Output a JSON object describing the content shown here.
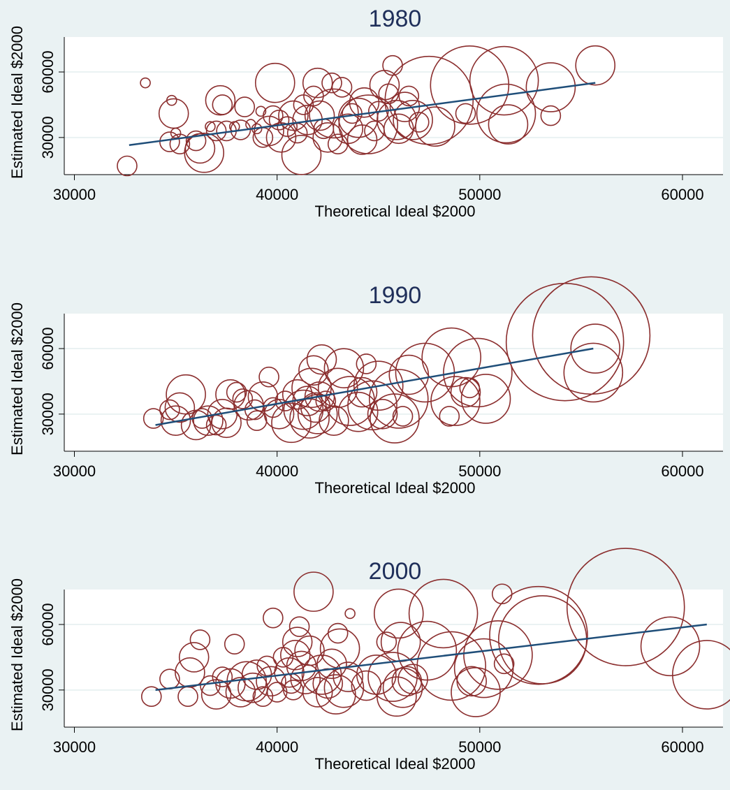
{
  "colors": {
    "background": "#eaf2f3",
    "plot_area": "#ffffff",
    "grid": "#eaf2f3",
    "marker": "#8b2e2e",
    "fit_line": "#1f4e79",
    "title": "#1f2f5a",
    "text": "#000000"
  },
  "chart_data": [
    {
      "type": "scatter",
      "title": "1980",
      "xlabel": "Theoretical Ideal $2000",
      "ylabel": "Estimated Ideal $2000",
      "xlim": [
        29500,
        62000
      ],
      "ylim": [
        13000,
        76000
      ],
      "xticks": [
        30000,
        40000,
        50000,
        60000
      ],
      "yticks": [
        30000,
        60000
      ],
      "grid": true,
      "fit_line": {
        "x": [
          32700,
          55700
        ],
        "y": [
          26500,
          55000
        ]
      },
      "points": [
        {
          "x": 32600,
          "y": 17000,
          "size": 2
        },
        {
          "x": 33500,
          "y": 55000,
          "size": 1
        },
        {
          "x": 34700,
          "y": 28000,
          "size": 2
        },
        {
          "x": 35000,
          "y": 32000,
          "size": 1
        },
        {
          "x": 35200,
          "y": 27000,
          "size": 2
        },
        {
          "x": 34800,
          "y": 47000,
          "size": 1
        },
        {
          "x": 34900,
          "y": 41000,
          "size": 3
        },
        {
          "x": 36000,
          "y": 28500,
          "size": 2
        },
        {
          "x": 36200,
          "y": 25000,
          "size": 3
        },
        {
          "x": 36400,
          "y": 23000,
          "size": 4
        },
        {
          "x": 36700,
          "y": 35000,
          "size": 1
        },
        {
          "x": 37000,
          "y": 33000,
          "size": 2
        },
        {
          "x": 37200,
          "y": 47000,
          "size": 3
        },
        {
          "x": 37300,
          "y": 45000,
          "size": 2
        },
        {
          "x": 37500,
          "y": 33000,
          "size": 2
        },
        {
          "x": 37900,
          "y": 35000,
          "size": 1
        },
        {
          "x": 38200,
          "y": 33500,
          "size": 2
        },
        {
          "x": 38400,
          "y": 44000,
          "size": 2
        },
        {
          "x": 38700,
          "y": 36000,
          "size": 1
        },
        {
          "x": 39000,
          "y": 34000,
          "size": 1
        },
        {
          "x": 39200,
          "y": 42000,
          "size": 1
        },
        {
          "x": 39300,
          "y": 30000,
          "size": 2
        },
        {
          "x": 39600,
          "y": 33000,
          "size": 3
        },
        {
          "x": 39800,
          "y": 40000,
          "size": 2
        },
        {
          "x": 39900,
          "y": 55000,
          "size": 4
        },
        {
          "x": 40100,
          "y": 38000,
          "size": 2
        },
        {
          "x": 40200,
          "y": 30000,
          "size": 3
        },
        {
          "x": 40500,
          "y": 35000,
          "size": 2
        },
        {
          "x": 40800,
          "y": 40000,
          "size": 3
        },
        {
          "x": 41000,
          "y": 32000,
          "size": 2
        },
        {
          "x": 41200,
          "y": 22000,
          "size": 4
        },
        {
          "x": 41300,
          "y": 45000,
          "size": 2
        },
        {
          "x": 41500,
          "y": 38000,
          "size": 3
        },
        {
          "x": 41800,
          "y": 49000,
          "size": 2
        },
        {
          "x": 42000,
          "y": 55000,
          "size": 3
        },
        {
          "x": 42100,
          "y": 40000,
          "size": 3
        },
        {
          "x": 42300,
          "y": 34000,
          "size": 2
        },
        {
          "x": 42500,
          "y": 30000,
          "size": 3
        },
        {
          "x": 42700,
          "y": 55000,
          "size": 2
        },
        {
          "x": 42800,
          "y": 41000,
          "size": 5
        },
        {
          "x": 43000,
          "y": 27000,
          "size": 2
        },
        {
          "x": 43200,
          "y": 53000,
          "size": 2
        },
        {
          "x": 43500,
          "y": 34000,
          "size": 3
        },
        {
          "x": 43700,
          "y": 41000,
          "size": 2
        },
        {
          "x": 44000,
          "y": 39000,
          "size": 4
        },
        {
          "x": 44200,
          "y": 29000,
          "size": 3
        },
        {
          "x": 44300,
          "y": 46000,
          "size": 3
        },
        {
          "x": 44500,
          "y": 36000,
          "size": 6
        },
        {
          "x": 44800,
          "y": 33000,
          "size": 2
        },
        {
          "x": 45000,
          "y": 42000,
          "size": 2
        },
        {
          "x": 45300,
          "y": 54000,
          "size": 3
        },
        {
          "x": 45500,
          "y": 50000,
          "size": 2
        },
        {
          "x": 45700,
          "y": 63000,
          "size": 2
        },
        {
          "x": 45900,
          "y": 38000,
          "size": 4
        },
        {
          "x": 46000,
          "y": 34000,
          "size": 3
        },
        {
          "x": 46300,
          "y": 44000,
          "size": 3
        },
        {
          "x": 46500,
          "y": 49000,
          "size": 2
        },
        {
          "x": 46700,
          "y": 38000,
          "size": 4
        },
        {
          "x": 47000,
          "y": 37000,
          "size": 2
        },
        {
          "x": 47500,
          "y": 47000,
          "size": 9
        },
        {
          "x": 47800,
          "y": 35000,
          "size": 4
        },
        {
          "x": 49300,
          "y": 41000,
          "size": 2
        },
        {
          "x": 49500,
          "y": 54000,
          "size": 8
        },
        {
          "x": 51200,
          "y": 56000,
          "size": 7
        },
        {
          "x": 51300,
          "y": 41000,
          "size": 6
        },
        {
          "x": 51400,
          "y": 36000,
          "size": 4
        },
        {
          "x": 53500,
          "y": 53000,
          "size": 5
        },
        {
          "x": 53500,
          "y": 40000,
          "size": 2
        },
        {
          "x": 55700,
          "y": 63000,
          "size": 4
        }
      ]
    },
    {
      "type": "scatter",
      "title": "1990",
      "xlabel": "Theoretical Ideal $2000",
      "ylabel": "Estimated Ideal $2000",
      "xlim": [
        29500,
        62000
      ],
      "ylim": [
        13000,
        76000
      ],
      "xticks": [
        30000,
        40000,
        50000,
        60000
      ],
      "yticks": [
        30000,
        60000
      ],
      "grid": true,
      "fit_line": {
        "x": [
          34000,
          55600
        ],
        "y": [
          25000,
          60000
        ]
      },
      "points": [
        {
          "x": 33900,
          "y": 28000,
          "size": 2
        },
        {
          "x": 34700,
          "y": 32000,
          "size": 2
        },
        {
          "x": 35000,
          "y": 27000,
          "size": 3
        },
        {
          "x": 35200,
          "y": 33000,
          "size": 3
        },
        {
          "x": 35500,
          "y": 39000,
          "size": 4
        },
        {
          "x": 36000,
          "y": 25000,
          "size": 3
        },
        {
          "x": 36300,
          "y": 28000,
          "size": 2
        },
        {
          "x": 36600,
          "y": 27000,
          "size": 3
        },
        {
          "x": 37000,
          "y": 25000,
          "size": 2
        },
        {
          "x": 37300,
          "y": 30000,
          "size": 3
        },
        {
          "x": 37500,
          "y": 26000,
          "size": 3
        },
        {
          "x": 37700,
          "y": 39000,
          "size": 3
        },
        {
          "x": 38000,
          "y": 40000,
          "size": 2
        },
        {
          "x": 38300,
          "y": 37000,
          "size": 2
        },
        {
          "x": 38600,
          "y": 34000,
          "size": 3
        },
        {
          "x": 38900,
          "y": 32000,
          "size": 2
        },
        {
          "x": 39000,
          "y": 27000,
          "size": 2
        },
        {
          "x": 39300,
          "y": 38000,
          "size": 3
        },
        {
          "x": 39600,
          "y": 47000,
          "size": 2
        },
        {
          "x": 39800,
          "y": 33000,
          "size": 2
        },
        {
          "x": 40100,
          "y": 30000,
          "size": 3
        },
        {
          "x": 40400,
          "y": 36000,
          "size": 2
        },
        {
          "x": 40700,
          "y": 26000,
          "size": 4
        },
        {
          "x": 41000,
          "y": 39000,
          "size": 3
        },
        {
          "x": 41300,
          "y": 32000,
          "size": 4
        },
        {
          "x": 41500,
          "y": 36000,
          "size": 3
        },
        {
          "x": 41600,
          "y": 28000,
          "size": 4
        },
        {
          "x": 41700,
          "y": 42000,
          "size": 4
        },
        {
          "x": 41800,
          "y": 50000,
          "size": 3
        },
        {
          "x": 41900,
          "y": 33000,
          "size": 3
        },
        {
          "x": 42000,
          "y": 30000,
          "size": 4
        },
        {
          "x": 42100,
          "y": 38000,
          "size": 3
        },
        {
          "x": 42200,
          "y": 55000,
          "size": 3
        },
        {
          "x": 42400,
          "y": 36000,
          "size": 2
        },
        {
          "x": 42800,
          "y": 27000,
          "size": 3
        },
        {
          "x": 43000,
          "y": 42000,
          "size": 4
        },
        {
          "x": 43300,
          "y": 51000,
          "size": 4
        },
        {
          "x": 43600,
          "y": 36000,
          "size": 5
        },
        {
          "x": 44000,
          "y": 31000,
          "size": 4
        },
        {
          "x": 44200,
          "y": 40000,
          "size": 3
        },
        {
          "x": 44400,
          "y": 53000,
          "size": 2
        },
        {
          "x": 44700,
          "y": 34000,
          "size": 5
        },
        {
          "x": 45000,
          "y": 43000,
          "size": 5
        },
        {
          "x": 45200,
          "y": 30000,
          "size": 3
        },
        {
          "x": 45800,
          "y": 28000,
          "size": 5
        },
        {
          "x": 46000,
          "y": 37000,
          "size": 6
        },
        {
          "x": 46200,
          "y": 29000,
          "size": 2
        },
        {
          "x": 46500,
          "y": 48000,
          "size": 4
        },
        {
          "x": 47300,
          "y": 49000,
          "size": 6
        },
        {
          "x": 48500,
          "y": 29000,
          "size": 2
        },
        {
          "x": 48600,
          "y": 56000,
          "size": 6
        },
        {
          "x": 48800,
          "y": 36000,
          "size": 5
        },
        {
          "x": 49300,
          "y": 40000,
          "size": 3
        },
        {
          "x": 49500,
          "y": 42000,
          "size": 2
        },
        {
          "x": 49900,
          "y": 49000,
          "size": 7
        },
        {
          "x": 50300,
          "y": 37000,
          "size": 5
        },
        {
          "x": 54200,
          "y": 63000,
          "size": 12
        },
        {
          "x": 55500,
          "y": 66000,
          "size": 12
        },
        {
          "x": 55700,
          "y": 60000,
          "size": 5
        },
        {
          "x": 55600,
          "y": 49000,
          "size": 6
        }
      ]
    },
    {
      "type": "scatter",
      "title": "2000",
      "xlabel": "Theoretical Ideal $2000",
      "ylabel": "Estimated Ideal $2000",
      "xlim": [
        29500,
        62000
      ],
      "ylim": [
        13000,
        76000
      ],
      "xticks": [
        30000,
        40000,
        50000,
        60000
      ],
      "yticks": [
        30000,
        60000
      ],
      "grid": true,
      "fit_line": {
        "x": [
          34000,
          61200
        ],
        "y": [
          30000,
          60000
        ]
      },
      "points": [
        {
          "x": 33800,
          "y": 27000,
          "size": 2
        },
        {
          "x": 34700,
          "y": 35000,
          "size": 2
        },
        {
          "x": 35600,
          "y": 27000,
          "size": 2
        },
        {
          "x": 35700,
          "y": 38000,
          "size": 3
        },
        {
          "x": 35900,
          "y": 45000,
          "size": 3
        },
        {
          "x": 36200,
          "y": 53000,
          "size": 2
        },
        {
          "x": 36700,
          "y": 32000,
          "size": 2
        },
        {
          "x": 37000,
          "y": 28000,
          "size": 3
        },
        {
          "x": 37300,
          "y": 36000,
          "size": 2
        },
        {
          "x": 37700,
          "y": 33000,
          "size": 3
        },
        {
          "x": 37900,
          "y": 51000,
          "size": 2
        },
        {
          "x": 38200,
          "y": 29000,
          "size": 3
        },
        {
          "x": 38500,
          "y": 34000,
          "size": 4
        },
        {
          "x": 38800,
          "y": 31000,
          "size": 3
        },
        {
          "x": 39000,
          "y": 37000,
          "size": 3
        },
        {
          "x": 39300,
          "y": 27000,
          "size": 2
        },
        {
          "x": 39500,
          "y": 41000,
          "size": 2
        },
        {
          "x": 39700,
          "y": 34000,
          "size": 3
        },
        {
          "x": 39800,
          "y": 63000,
          "size": 2
        },
        {
          "x": 40000,
          "y": 29000,
          "size": 2
        },
        {
          "x": 40300,
          "y": 45000,
          "size": 2
        },
        {
          "x": 40600,
          "y": 38000,
          "size": 3
        },
        {
          "x": 40700,
          "y": 33000,
          "size": 2
        },
        {
          "x": 40800,
          "y": 30000,
          "size": 2
        },
        {
          "x": 40900,
          "y": 46000,
          "size": 3
        },
        {
          "x": 41000,
          "y": 52000,
          "size": 3
        },
        {
          "x": 41100,
          "y": 59000,
          "size": 2
        },
        {
          "x": 41200,
          "y": 41000,
          "size": 3
        },
        {
          "x": 41400,
          "y": 35000,
          "size": 3
        },
        {
          "x": 41600,
          "y": 48000,
          "size": 3
        },
        {
          "x": 41800,
          "y": 75000,
          "size": 4
        },
        {
          "x": 42000,
          "y": 29000,
          "size": 3
        },
        {
          "x": 42200,
          "y": 37000,
          "size": 4
        },
        {
          "x": 42500,
          "y": 33000,
          "size": 3
        },
        {
          "x": 42700,
          "y": 42000,
          "size": 3
        },
        {
          "x": 42900,
          "y": 28000,
          "size": 4
        },
        {
          "x": 43000,
          "y": 56000,
          "size": 2
        },
        {
          "x": 43100,
          "y": 49000,
          "size": 4
        },
        {
          "x": 43300,
          "y": 31000,
          "size": 4
        },
        {
          "x": 43500,
          "y": 36000,
          "size": 3
        },
        {
          "x": 43600,
          "y": 65000,
          "size": 1
        },
        {
          "x": 44400,
          "y": 32000,
          "size": 3
        },
        {
          "x": 44900,
          "y": 37000,
          "size": 4
        },
        {
          "x": 45400,
          "y": 52000,
          "size": 2
        },
        {
          "x": 45700,
          "y": 36000,
          "size": 5
        },
        {
          "x": 45900,
          "y": 27000,
          "size": 4
        },
        {
          "x": 46000,
          "y": 65000,
          "size": 5
        },
        {
          "x": 46100,
          "y": 52000,
          "size": 4
        },
        {
          "x": 46200,
          "y": 31000,
          "size": 4
        },
        {
          "x": 46400,
          "y": 34000,
          "size": 3
        },
        {
          "x": 46700,
          "y": 35000,
          "size": 3
        },
        {
          "x": 47400,
          "y": 48000,
          "size": 6
        },
        {
          "x": 48200,
          "y": 65000,
          "size": 7
        },
        {
          "x": 48600,
          "y": 41000,
          "size": 7
        },
        {
          "x": 49600,
          "y": 34000,
          "size": 3
        },
        {
          "x": 49800,
          "y": 29000,
          "size": 5
        },
        {
          "x": 50200,
          "y": 40000,
          "size": 6
        },
        {
          "x": 50900,
          "y": 46000,
          "size": 7
        },
        {
          "x": 51100,
          "y": 74000,
          "size": 2
        },
        {
          "x": 51200,
          "y": 42000,
          "size": 2
        },
        {
          "x": 52900,
          "y": 55000,
          "size": 10
        },
        {
          "x": 53100,
          "y": 53000,
          "size": 9
        },
        {
          "x": 57200,
          "y": 68000,
          "size": 12
        },
        {
          "x": 59400,
          "y": 50000,
          "size": 6
        },
        {
          "x": 61200,
          "y": 37000,
          "size": 7
        }
      ]
    }
  ]
}
